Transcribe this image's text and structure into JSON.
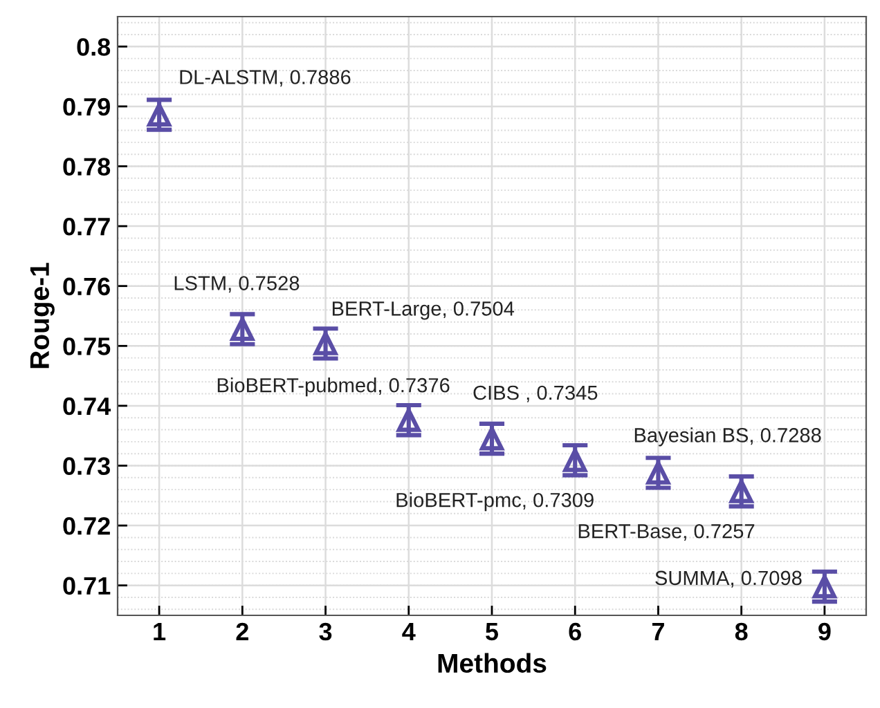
{
  "chart_data": {
    "type": "scatter",
    "xlabel": "Methods",
    "ylabel": "Rouge-1",
    "x": [
      1,
      2,
      3,
      4,
      5,
      6,
      7,
      8,
      9
    ],
    "values": [
      0.7886,
      0.7528,
      0.7504,
      0.7376,
      0.7345,
      0.7309,
      0.7288,
      0.7257,
      0.7098
    ],
    "errors": [
      0.0025,
      0.0025,
      0.0025,
      0.0025,
      0.0025,
      0.0025,
      0.0025,
      0.0025,
      0.0025
    ],
    "color": "#5a4ea6",
    "marker": "triangle",
    "grid": true,
    "xlim": [
      0.5,
      9.5
    ],
    "xticks": [
      1,
      2,
      3,
      4,
      5,
      6,
      7,
      8,
      9
    ],
    "ylim": [
      0.705,
      0.805
    ],
    "yticks": [
      0.71,
      0.72,
      0.73,
      0.74,
      0.75,
      0.76,
      0.77,
      0.78,
      0.79,
      0.8
    ],
    "annotations": [
      {
        "text": "DL-ALSTM, 0.7886",
        "x": 1,
        "y": 0.7886
      },
      {
        "text": "LSTM, 0.7528",
        "x": 2,
        "y": 0.7528
      },
      {
        "text": "BERT-Large, 0.7504",
        "x": 3,
        "y": 0.7504
      },
      {
        "text": "BioBERT-pubmed, 0.7376",
        "x": 4,
        "y": 0.7376
      },
      {
        "text": "CIBS , 0.7345",
        "x": 5,
        "y": 0.7345
      },
      {
        "text": "BioBERT-pmc, 0.7309",
        "x": 6,
        "y": 0.7309
      },
      {
        "text": "Bayesian BS, 0.7288",
        "x": 7,
        "y": 0.7288
      },
      {
        "text": "BERT-Base, 0.7257",
        "x": 8,
        "y": 0.7257
      },
      {
        "text": "SUMMA, 0.7098",
        "x": 9,
        "y": 0.7098
      }
    ]
  }
}
